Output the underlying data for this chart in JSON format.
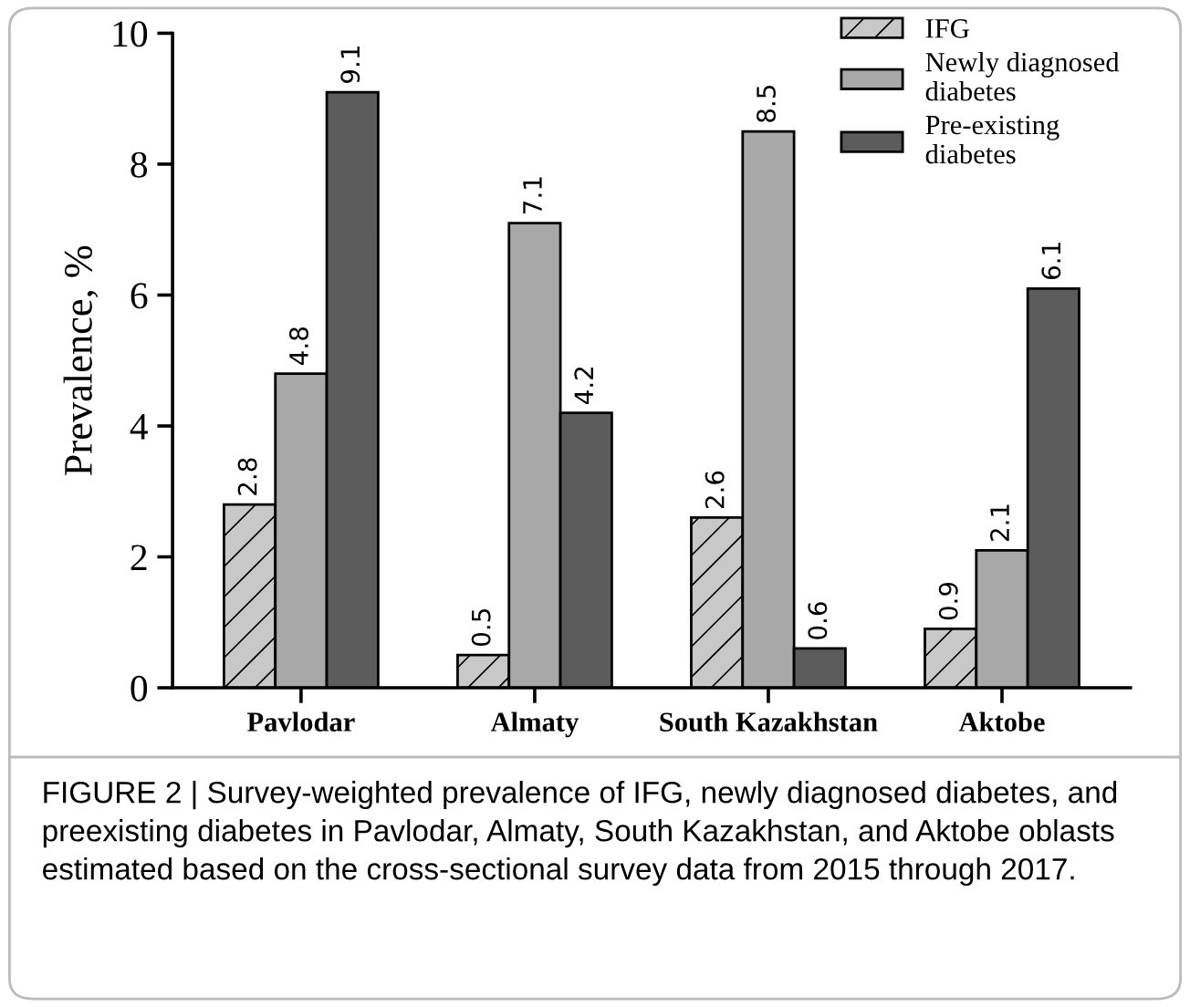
{
  "chart_data": {
    "type": "bar",
    "ylabel": "Prevalence, %",
    "categories": [
      "Pavlodar",
      "Almaty",
      "South Kazakhstan",
      "Aktobe"
    ],
    "series": [
      {
        "name": "IFG",
        "color": "#c8c8c8",
        "values": [
          2.8,
          0.5,
          2.6,
          0.9
        ]
      },
      {
        "name": "Newly diagnosed diabetes",
        "color": "#a8a8a8",
        "values": [
          4.8,
          7.1,
          8.5,
          2.1
        ]
      },
      {
        "name": "Pre-existing diabetes",
        "color": "#5c5c5c",
        "values": [
          9.1,
          4.2,
          0.6,
          6.1
        ]
      }
    ],
    "ylim": [
      0,
      10
    ],
    "yticks": [
      0,
      2,
      4,
      6,
      8,
      10
    ],
    "data_labels": true,
    "legend": "top right",
    "grid": false,
    "annotations": [
      "FIGURE 2 | Survey-weighted prevalence of IFG, newly diagnosed diabetes, and preexisting diabetes in Pavlodar, Almaty, South Kazakhstan, and Aktobe oblasts estimated based on the cross-sectional survey data from 2015 through 2017."
    ]
  }
}
